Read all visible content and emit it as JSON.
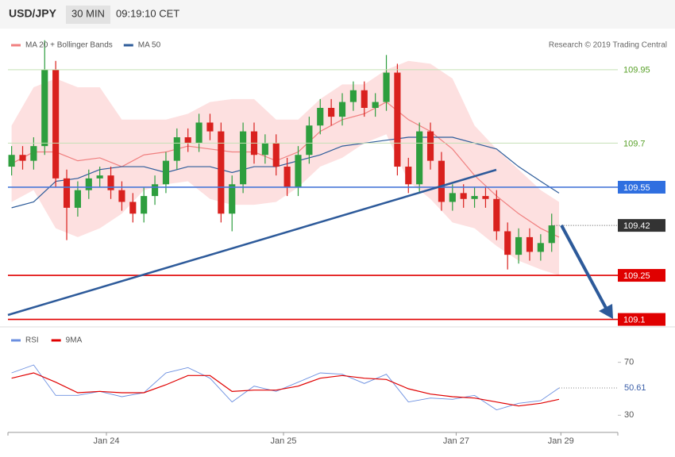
{
  "header": {
    "symbol": "USD/JPY",
    "interval": "30 MIN",
    "time": "09:19:10 CET"
  },
  "chart_data": [
    {
      "type": "candlestick",
      "credit": "Research © 2019 Trading Central",
      "xlim": [
        0,
        166
      ],
      "ylim": [
        109.08,
        110.09
      ],
      "up_color": "#2e9e3e",
      "down_color": "#d9211e",
      "x": [
        1,
        4,
        7,
        10,
        13,
        16,
        19,
        22,
        25,
        28,
        31,
        34,
        37,
        40,
        43,
        46,
        49,
        52,
        55,
        58,
        61,
        64,
        67,
        70,
        73,
        76,
        79,
        82,
        85,
        88,
        91,
        94,
        97,
        100,
        103,
        106,
        109,
        112,
        115,
        118,
        121,
        124,
        127,
        130,
        133,
        136,
        139,
        142,
        145,
        148
      ],
      "open": [
        109.62,
        109.66,
        109.64,
        109.69,
        109.95,
        109.58,
        109.48,
        109.54,
        109.58,
        109.59,
        109.54,
        109.5,
        109.46,
        109.52,
        109.56,
        109.64,
        109.72,
        109.7,
        109.77,
        109.74,
        109.46,
        109.56,
        109.74,
        109.66,
        109.7,
        109.62,
        109.55,
        109.66,
        109.76,
        109.82,
        109.79,
        109.84,
        109.88,
        109.82,
        109.84,
        109.94,
        109.62,
        109.56,
        109.74,
        109.64,
        109.5,
        109.53,
        109.51,
        109.52,
        109.51,
        109.4,
        109.32,
        109.38,
        109.33,
        109.36
      ],
      "high": [
        109.69,
        109.69,
        109.72,
        110.05,
        109.98,
        109.61,
        109.57,
        109.61,
        109.62,
        109.62,
        109.57,
        109.53,
        109.55,
        109.59,
        109.67,
        109.75,
        109.75,
        109.8,
        109.8,
        109.77,
        109.59,
        109.77,
        109.77,
        109.73,
        109.73,
        109.65,
        109.69,
        109.79,
        109.85,
        109.85,
        109.87,
        109.91,
        109.91,
        109.87,
        110.0,
        109.97,
        109.65,
        109.77,
        109.77,
        109.67,
        109.56,
        109.56,
        109.55,
        109.55,
        109.54,
        109.43,
        109.41,
        109.41,
        109.39,
        109.46
      ],
      "low": [
        109.59,
        109.61,
        109.61,
        109.66,
        109.55,
        109.37,
        109.45,
        109.51,
        109.55,
        109.51,
        109.47,
        109.43,
        109.43,
        109.49,
        109.53,
        109.61,
        109.67,
        109.67,
        109.71,
        109.43,
        109.4,
        109.53,
        109.63,
        109.63,
        109.59,
        109.52,
        109.52,
        109.63,
        109.73,
        109.76,
        109.76,
        109.81,
        109.79,
        109.79,
        109.81,
        109.59,
        109.53,
        109.53,
        109.61,
        109.47,
        109.47,
        109.48,
        109.48,
        109.48,
        109.37,
        109.27,
        109.29,
        109.3,
        109.3,
        109.33
      ],
      "close": [
        109.66,
        109.64,
        109.69,
        109.95,
        109.58,
        109.48,
        109.54,
        109.58,
        109.59,
        109.54,
        109.5,
        109.46,
        109.52,
        109.56,
        109.64,
        109.72,
        109.7,
        109.77,
        109.74,
        109.46,
        109.56,
        109.74,
        109.66,
        109.7,
        109.62,
        109.55,
        109.66,
        109.76,
        109.82,
        109.79,
        109.84,
        109.88,
        109.82,
        109.84,
        109.94,
        109.62,
        109.56,
        109.74,
        109.64,
        109.5,
        109.53,
        109.51,
        109.52,
        109.51,
        109.4,
        109.32,
        109.38,
        109.33,
        109.36,
        109.42
      ],
      "series": [
        {
          "name": "MA 20 + Bollinger Bands",
          "color": "#f08080",
          "band_color": "#fde0e0",
          "x": [
            1,
            7,
            13,
            19,
            25,
            31,
            37,
            43,
            49,
            55,
            61,
            67,
            73,
            79,
            85,
            91,
            97,
            103,
            109,
            115,
            121,
            127,
            133,
            139,
            145,
            150
          ],
          "values": [
            109.63,
            109.67,
            109.67,
            109.64,
            109.65,
            109.62,
            109.66,
            109.67,
            109.69,
            109.68,
            109.67,
            109.67,
            109.64,
            109.67,
            109.74,
            109.78,
            109.8,
            109.84,
            109.78,
            109.74,
            109.68,
            109.59,
            109.52,
            109.46,
            109.41,
            109.38
          ],
          "upper": [
            109.76,
            109.89,
            109.92,
            109.89,
            109.89,
            109.78,
            109.78,
            109.78,
            109.8,
            109.84,
            109.85,
            109.85,
            109.78,
            109.78,
            109.85,
            109.9,
            109.9,
            109.95,
            109.98,
            109.97,
            109.92,
            109.76,
            109.68,
            109.61,
            109.54,
            109.5
          ],
          "lower": [
            109.5,
            109.54,
            109.41,
            109.38,
            109.41,
            109.46,
            109.54,
            109.56,
            109.57,
            109.51,
            109.49,
            109.49,
            109.5,
            109.55,
            109.62,
            109.65,
            109.7,
            109.73,
            109.57,
            109.51,
            109.43,
            109.41,
            109.35,
            109.3,
            109.27,
            109.25
          ]
        },
        {
          "name": "MA 50",
          "color": "#2e5c9a",
          "x": [
            1,
            7,
            13,
            19,
            25,
            31,
            37,
            43,
            49,
            55,
            61,
            67,
            73,
            79,
            85,
            91,
            97,
            103,
            109,
            115,
            121,
            127,
            133,
            139,
            145,
            150
          ],
          "values": [
            109.48,
            109.5,
            109.57,
            109.58,
            109.61,
            109.62,
            109.62,
            109.6,
            109.62,
            109.62,
            109.6,
            109.62,
            109.62,
            109.64,
            109.66,
            109.69,
            109.7,
            109.71,
            109.72,
            109.72,
            109.72,
            109.7,
            109.68,
            109.62,
            109.57,
            109.53
          ]
        }
      ],
      "levels": [
        {
          "value": 109.95,
          "color": "#58a028",
          "line_color": "#c5e0b4",
          "box": false
        },
        {
          "value": 109.7,
          "color": "#58a028",
          "line_color": "#c5e0b4",
          "box": false
        },
        {
          "value": 109.55,
          "color": "#2f6fe0",
          "line_color": "#4a78d8",
          "box": true
        },
        {
          "value": 109.42,
          "color": "#333333",
          "line_color": "#555555",
          "box": true,
          "dotted": true
        },
        {
          "value": 109.25,
          "color": "#e00000",
          "line_color": "#e00000",
          "box": true
        },
        {
          "value": 109.1,
          "color": "#e00000",
          "line_color": "#e00000",
          "box": true
        }
      ]
    },
    {
      "type": "line",
      "xlim": [
        0,
        166
      ],
      "ylim": [
        20,
        95
      ],
      "yticks": [
        30,
        70
      ],
      "current_value": 50.61,
      "xticks": [
        {
          "value": 26.8,
          "label": "Jan 24"
        },
        {
          "value": 75,
          "label": "Jan 25"
        },
        {
          "value": 122,
          "label": "Jan 27"
        },
        {
          "value": 150.5,
          "label": "Jan 29"
        }
      ],
      "x": [
        1,
        7,
        13,
        19,
        25,
        31,
        37,
        43,
        49,
        55,
        61,
        67,
        73,
        79,
        85,
        91,
        97,
        103,
        109,
        115,
        121,
        127,
        133,
        139,
        145,
        150
      ],
      "series": [
        {
          "name": "RSI",
          "color": "#6b8fe0",
          "values": [
            62,
            68,
            45,
            45,
            48,
            44,
            47,
            62,
            66,
            58,
            40,
            52,
            48,
            55,
            62,
            61,
            54,
            61,
            40,
            43,
            42,
            45,
            34,
            39,
            41,
            50.61
          ]
        },
        {
          "name": "9MA",
          "color": "#e00000",
          "values": [
            58,
            62,
            55,
            47,
            48,
            47,
            47,
            53,
            60,
            60,
            48,
            49,
            49,
            52,
            58,
            60,
            58,
            57,
            50,
            46,
            44,
            43,
            40,
            37,
            39,
            42
          ]
        }
      ]
    }
  ]
}
